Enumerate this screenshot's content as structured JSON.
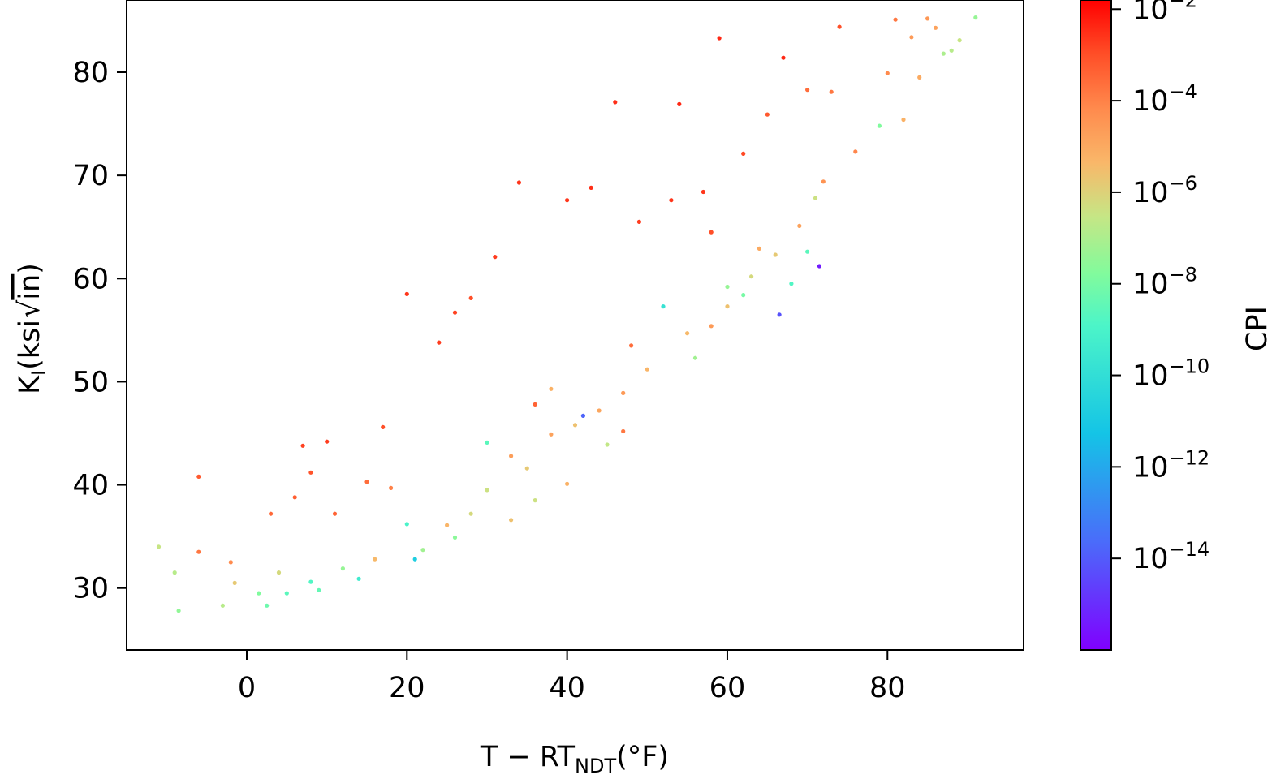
{
  "chart_data": {
    "type": "scatter",
    "title": "",
    "xlabel": "T − RT",
    "xlabel_sub": "NDT",
    "xlabel_suffix": "(°F)",
    "ylabel": "K",
    "ylabel_sub": "I",
    "ylabel_suffix_open": "(ksi",
    "ylabel_radicand": "in",
    "ylabel_suffix_close": ")",
    "xlim": [
      -15,
      97
    ],
    "ylim": [
      24,
      87
    ],
    "x_ticks": [
      0,
      20,
      40,
      60,
      80
    ],
    "x_tick_labels": [
      "0",
      "20",
      "40",
      "60",
      "80"
    ],
    "y_ticks": [
      30,
      40,
      50,
      60,
      70,
      80
    ],
    "y_tick_labels": [
      "30",
      "40",
      "50",
      "60",
      "70",
      "80"
    ],
    "grid": false,
    "legend": "none",
    "colorbar": {
      "label": "CPI",
      "scale": "log",
      "cmap": "rainbow",
      "range_log10": [
        -16,
        -1.8
      ],
      "tick_exponents": [
        -14,
        -12,
        -10,
        -8,
        -6,
        -4,
        -2
      ],
      "tick_base": "10",
      "tick_exponent_labels": [
        "−14",
        "−12",
        "−10",
        "−8",
        "−6",
        "−4",
        "−2"
      ]
    },
    "series": [
      {
        "x": [
          -11,
          -9,
          -8.5,
          -6,
          -6,
          -3,
          -2,
          -1.5,
          1.5,
          2.5,
          3,
          4,
          5,
          6,
          7,
          8,
          9,
          10,
          11,
          14,
          15,
          16,
          17,
          20,
          21,
          24,
          25,
          26,
          28,
          30,
          31,
          33,
          34,
          35,
          36,
          38,
          40,
          41,
          43,
          44,
          46,
          47,
          49,
          50,
          53,
          54,
          55,
          57,
          59,
          60,
          62,
          63,
          65,
          66,
          67,
          69,
          70,
          72,
          73,
          74,
          76,
          80,
          81,
          83,
          85,
          86,
          87,
          91,
          8,
          20,
          30,
          42,
          52,
          58,
          60,
          48,
          38,
          28,
          18,
          12,
          68,
          70,
          71.5,
          66.5,
          88,
          89,
          79,
          82,
          84,
          71,
          62,
          56,
          45,
          36,
          26,
          22,
          64,
          58,
          47,
          40,
          33
        ],
        "y": [
          34,
          31.5,
          27.8,
          40.8,
          33.5,
          28.3,
          32.5,
          30.5,
          29.5,
          28.3,
          37.2,
          31.5,
          29.5,
          38.8,
          43.8,
          41.2,
          29.8,
          44.2,
          37.2,
          30.9,
          40.3,
          32.8,
          45.6,
          58.5,
          32.8,
          53.8,
          36.1,
          56.7,
          58.1,
          39.5,
          62.1,
          42.8,
          69.3,
          41.6,
          47.8,
          44.9,
          67.6,
          45.8,
          68.8,
          47.2,
          77.1,
          48.9,
          65.5,
          51.2,
          67.6,
          76.9,
          54.7,
          68.4,
          83.3,
          57.3,
          72.1,
          60.2,
          75.9,
          62.3,
          81.4,
          65.1,
          78.3,
          69.4,
          78.1,
          84.4,
          72.3,
          79.9,
          85.1,
          83.4,
          85.2,
          84.3,
          81.8,
          85.3,
          30.6,
          36.2,
          44.1,
          46.7,
          57.3,
          64.5,
          59.2,
          53.5,
          49.3,
          37.2,
          39.7,
          31.9,
          59.5,
          62.6,
          61.2,
          56.5,
          82.1,
          83.1,
          74.8,
          75.4,
          79.5,
          67.8,
          58.4,
          52.3,
          43.9,
          38.5,
          34.9,
          33.7,
          62.9,
          55.4,
          45.2,
          40.1,
          36.6
        ],
        "c_log10": [
          -6.5,
          -6.8,
          -7.5,
          -3.2,
          -3.8,
          -6.8,
          -4.2,
          -5.8,
          -7.8,
          -8.2,
          -3.5,
          -6.2,
          -8.6,
          -3.3,
          -2.8,
          -3.1,
          -8.4,
          -2.7,
          -3.4,
          -9.4,
          -3.6,
          -5.4,
          -3.0,
          -2.6,
          -10.8,
          -2.7,
          -5.3,
          -2.8,
          -3.0,
          -6.4,
          -2.7,
          -4.7,
          -2.6,
          -5.8,
          -3.4,
          -4.8,
          -2.6,
          -5.6,
          -2.5,
          -4.9,
          -2.5,
          -4.6,
          -2.7,
          -5.3,
          -2.6,
          -2.4,
          -5.4,
          -2.6,
          -2.4,
          -5.6,
          -2.9,
          -6.2,
          -3.2,
          -5.8,
          -2.4,
          -4.8,
          -3.6,
          -4.4,
          -3.8,
          -3.0,
          -4.1,
          -4.2,
          -3.8,
          -4.6,
          -4.5,
          -4.8,
          -7.0,
          -7.4,
          -8.8,
          -9.0,
          -8.6,
          -13.8,
          -9.8,
          -3.0,
          -7.4,
          -3.6,
          -5.2,
          -6.2,
          -4.0,
          -7.4,
          -8.8,
          -8.6,
          -15.4,
          -14.2,
          -6.8,
          -6.5,
          -7.8,
          -5.2,
          -5.0,
          -6.4,
          -8.0,
          -7.2,
          -6.6,
          -6.4,
          -7.6,
          -7.2,
          -5.0,
          -4.6,
          -3.8,
          -5.2,
          -5.6
        ]
      }
    ]
  }
}
